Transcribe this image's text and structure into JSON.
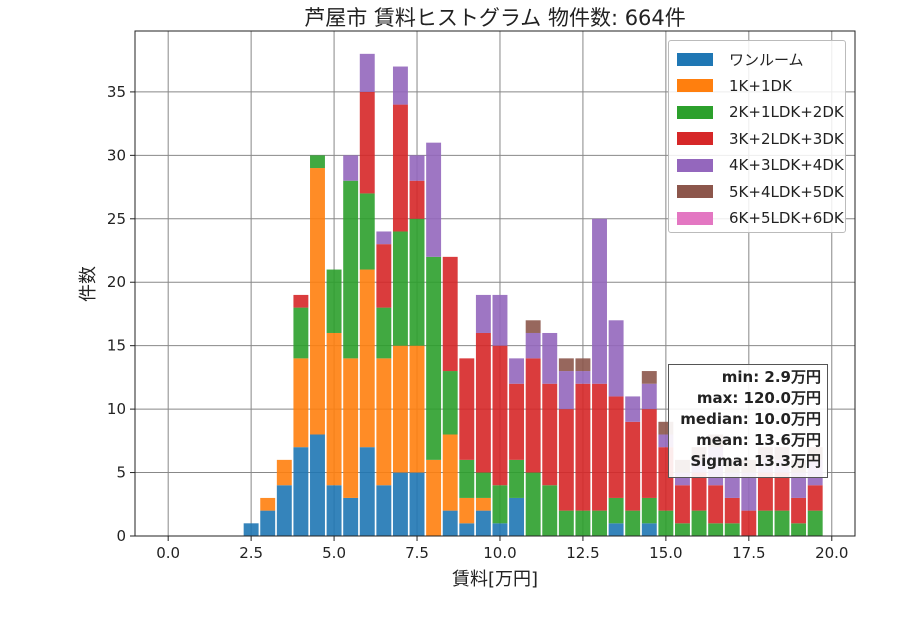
{
  "chart_data": {
    "type": "bar",
    "stacked": true,
    "title": "芦屋市 賃料ヒストグラム 物件数: 664件",
    "xlabel": "賃料[万円]",
    "ylabel": "件数",
    "xlim": [
      -1.0,
      20.7
    ],
    "ylim": [
      0,
      39.8
    ],
    "xticks": [
      0.0,
      2.5,
      5.0,
      7.5,
      10.0,
      12.5,
      15.0,
      17.5,
      20.0
    ],
    "xtick_labels": [
      "0.0",
      "2.5",
      "5.0",
      "7.5",
      "10.0",
      "12.5",
      "15.0",
      "17.5",
      "20.0"
    ],
    "yticks": [
      0,
      5,
      10,
      15,
      20,
      25,
      30,
      35
    ],
    "ytick_labels": [
      "0",
      "5",
      "10",
      "15",
      "20",
      "25",
      "30",
      "35"
    ],
    "grid": true,
    "legend_position": "top-right",
    "bin_width": 0.5,
    "bar_width": 0.45,
    "x": [
      2.5,
      3.0,
      3.5,
      4.0,
      4.5,
      5.0,
      5.5,
      6.0,
      6.5,
      7.0,
      7.5,
      8.0,
      8.5,
      9.0,
      9.5,
      10.0,
      10.5,
      11.0,
      11.5,
      12.0,
      12.5,
      13.0,
      13.5,
      14.0,
      14.5,
      15.0,
      15.5,
      16.0,
      16.5,
      17.0,
      17.5,
      18.0,
      18.5,
      19.0,
      19.5
    ],
    "series": [
      {
        "name": "ワンルーム",
        "color": "#1f77b4",
        "values": [
          1,
          2,
          4,
          7,
          8,
          4,
          3,
          7,
          4,
          5,
          5,
          0,
          2,
          1,
          2,
          1,
          3,
          0,
          0,
          0,
          0,
          0,
          1,
          0,
          1,
          0,
          0,
          0,
          0,
          0,
          0,
          0,
          0,
          0,
          0
        ]
      },
      {
        "name": "1K+1DK",
        "color": "#ff7f0e",
        "values": [
          0,
          1,
          2,
          7,
          21,
          12,
          11,
          14,
          10,
          10,
          10,
          6,
          6,
          2,
          1,
          0,
          0,
          0,
          0,
          0,
          0,
          0,
          0,
          0,
          0,
          0,
          0,
          0,
          0,
          0,
          0,
          0,
          0,
          0,
          0
        ]
      },
      {
        "name": "2K+1LDK+2DK",
        "color": "#2ca02c",
        "values": [
          0,
          0,
          0,
          4,
          1,
          5,
          14,
          6,
          4,
          9,
          10,
          16,
          5,
          3,
          2,
          3,
          3,
          5,
          4,
          2,
          2,
          2,
          2,
          2,
          2,
          2,
          1,
          2,
          1,
          1,
          0,
          2,
          2,
          1,
          2
        ]
      },
      {
        "name": "3K+2LDK+3DK",
        "color": "#d62728",
        "values": [
          0,
          0,
          0,
          1,
          0,
          0,
          0,
          8,
          5,
          10,
          3,
          0,
          9,
          8,
          11,
          11,
          6,
          9,
          8,
          8,
          10,
          10,
          8,
          7,
          7,
          5,
          3,
          3,
          3,
          2,
          2,
          3,
          3,
          2,
          2
        ]
      },
      {
        "name": "4K+3LDK+4DK",
        "color": "#9467bd",
        "values": [
          0,
          0,
          0,
          0,
          0,
          0,
          2,
          3,
          1,
          3,
          2,
          9,
          0,
          0,
          3,
          4,
          2,
          2,
          4,
          3,
          1,
          13,
          6,
          2,
          2,
          1,
          1,
          1,
          3,
          2,
          3,
          1,
          1,
          2,
          2
        ]
      },
      {
        "name": "5K+4LDK+5DK",
        "color": "#8c564b",
        "values": [
          0,
          0,
          0,
          0,
          0,
          0,
          0,
          0,
          0,
          0,
          0,
          0,
          0,
          0,
          0,
          0,
          0,
          1,
          0,
          1,
          1,
          0,
          0,
          0,
          1,
          1,
          1,
          1,
          1,
          1,
          1,
          1,
          1,
          1,
          1
        ]
      },
      {
        "name": "6K+5LDK+6DK",
        "color": "#e377c2",
        "values": [
          0,
          0,
          0,
          0,
          0,
          0,
          0,
          0,
          0,
          0,
          0,
          0,
          0,
          0,
          0,
          0,
          0,
          0,
          0,
          0,
          0,
          0,
          0,
          0,
          0,
          0,
          0,
          0,
          0,
          0,
          0,
          0,
          0,
          0,
          0
        ]
      }
    ],
    "stats": [
      "min: 2.9万円",
      "max: 120.0万円",
      "median: 10.0万円",
      "mean: 13.6万円",
      "Sigma: 13.3万円"
    ]
  }
}
